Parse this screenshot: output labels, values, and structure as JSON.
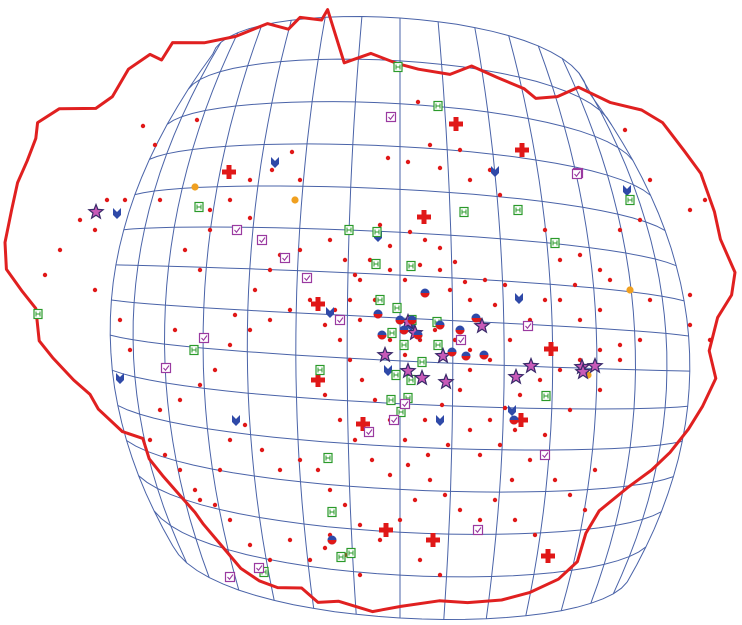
{
  "map": {
    "colors": {
      "grid": "#4a63a8",
      "border": "#e02020",
      "dot": "#e01818",
      "hospital": "#e01818",
      "orange": "#f0a020",
      "pin": "#2f49a8",
      "green": "#2a9a2a",
      "purple": "#9a3aa0",
      "star_fill": "#c85ab8",
      "star_stroke": "#3a2a6a"
    },
    "legend": [],
    "marker_types": {
      "dot": "red-dot-icon",
      "hospital": "red-cross-icon",
      "orange": "orange-circle-icon",
      "pin": "blue-chevron-icon",
      "green": "green-h-box-icon",
      "purple": "purple-check-box-icon",
      "star": "purple-star-icon",
      "cluster": "blue-red-circle-icon"
    }
  }
}
